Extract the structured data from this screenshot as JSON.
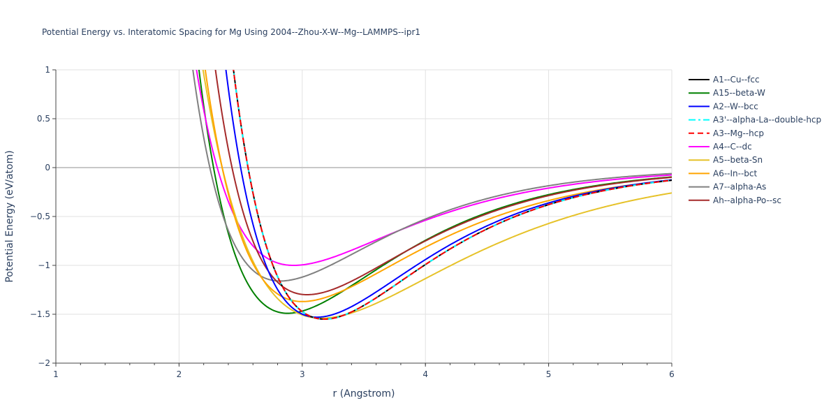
{
  "chart_data": {
    "type": "line",
    "title": "Potential Energy vs. Interatomic Spacing for Mg Using 2004--Zhou-X-W--Mg--LAMMPS--ipr1",
    "xlabel": "r (Angstrom)",
    "ylabel": "Potential Energy (eV/atom)",
    "xlim": [
      1,
      6
    ],
    "ylim": [
      -2,
      1
    ],
    "xticks": [
      1,
      2,
      3,
      4,
      5,
      6
    ],
    "xtick_labels": [
      "1",
      "2",
      "3",
      "4",
      "5",
      "6"
    ],
    "yticks": [
      -2,
      -1.5,
      -1,
      -0.5,
      0,
      0.5,
      1
    ],
    "ytick_labels": [
      "−2",
      "−1.5",
      "−1",
      "−0.5",
      "0",
      "0.5",
      "1"
    ],
    "legend_position": "right",
    "series": [
      {
        "name": "A1--Cu--fcc",
        "color": "#000000",
        "dash": "solid",
        "r_min": 3.18,
        "e_min": -1.55,
        "r_zero": 2.56,
        "decay": 1.33
      },
      {
        "name": "A15--beta-W",
        "color": "#008000",
        "dash": "solid",
        "r_min": 2.88,
        "e_min": -1.49,
        "r_zero": 2.28,
        "decay": 1.4
      },
      {
        "name": "A2--W--bcc",
        "color": "#0000ff",
        "dash": "solid",
        "r_min": 3.12,
        "e_min": -1.53,
        "r_zero": 2.5,
        "decay": 1.35
      },
      {
        "name": "A3'--alpha-La--double-hcp",
        "color": "#00ffff",
        "dash": "dashdot",
        "r_min": 3.18,
        "e_min": -1.55,
        "r_zero": 2.56,
        "decay": 1.33
      },
      {
        "name": "A3--Mg--hcp",
        "color": "#ff0000",
        "dash": "dash",
        "r_min": 3.18,
        "e_min": -1.55,
        "r_zero": 2.56,
        "decay": 1.33
      },
      {
        "name": "A4--C--dc",
        "color": "#ff00ff",
        "dash": "solid",
        "r_min": 2.93,
        "e_min": -1.0,
        "r_zero": 2.31,
        "decay": 1.4
      },
      {
        "name": "A5--beta-Sn",
        "color": "#e6c229",
        "dash": "solid",
        "r_min": 3.16,
        "e_min": -1.54,
        "r_zero": 2.35,
        "decay": 1.33
      },
      {
        "name": "A6--In--bct",
        "color": "#ffa500",
        "dash": "solid",
        "r_min": 3.0,
        "e_min": -1.37,
        "r_zero": 2.35,
        "decay": 1.4
      },
      {
        "name": "A7--alpha-As",
        "color": "#808080",
        "dash": "solid",
        "r_min": 2.82,
        "e_min": -1.16,
        "r_zero": 2.25,
        "decay": 1.42
      },
      {
        "name": "Ah--alpha-Po--sc",
        "color": "#a52a2a",
        "dash": "solid",
        "r_min": 3.04,
        "e_min": -1.3,
        "r_zero": 2.43,
        "decay": 1.38
      }
    ]
  }
}
